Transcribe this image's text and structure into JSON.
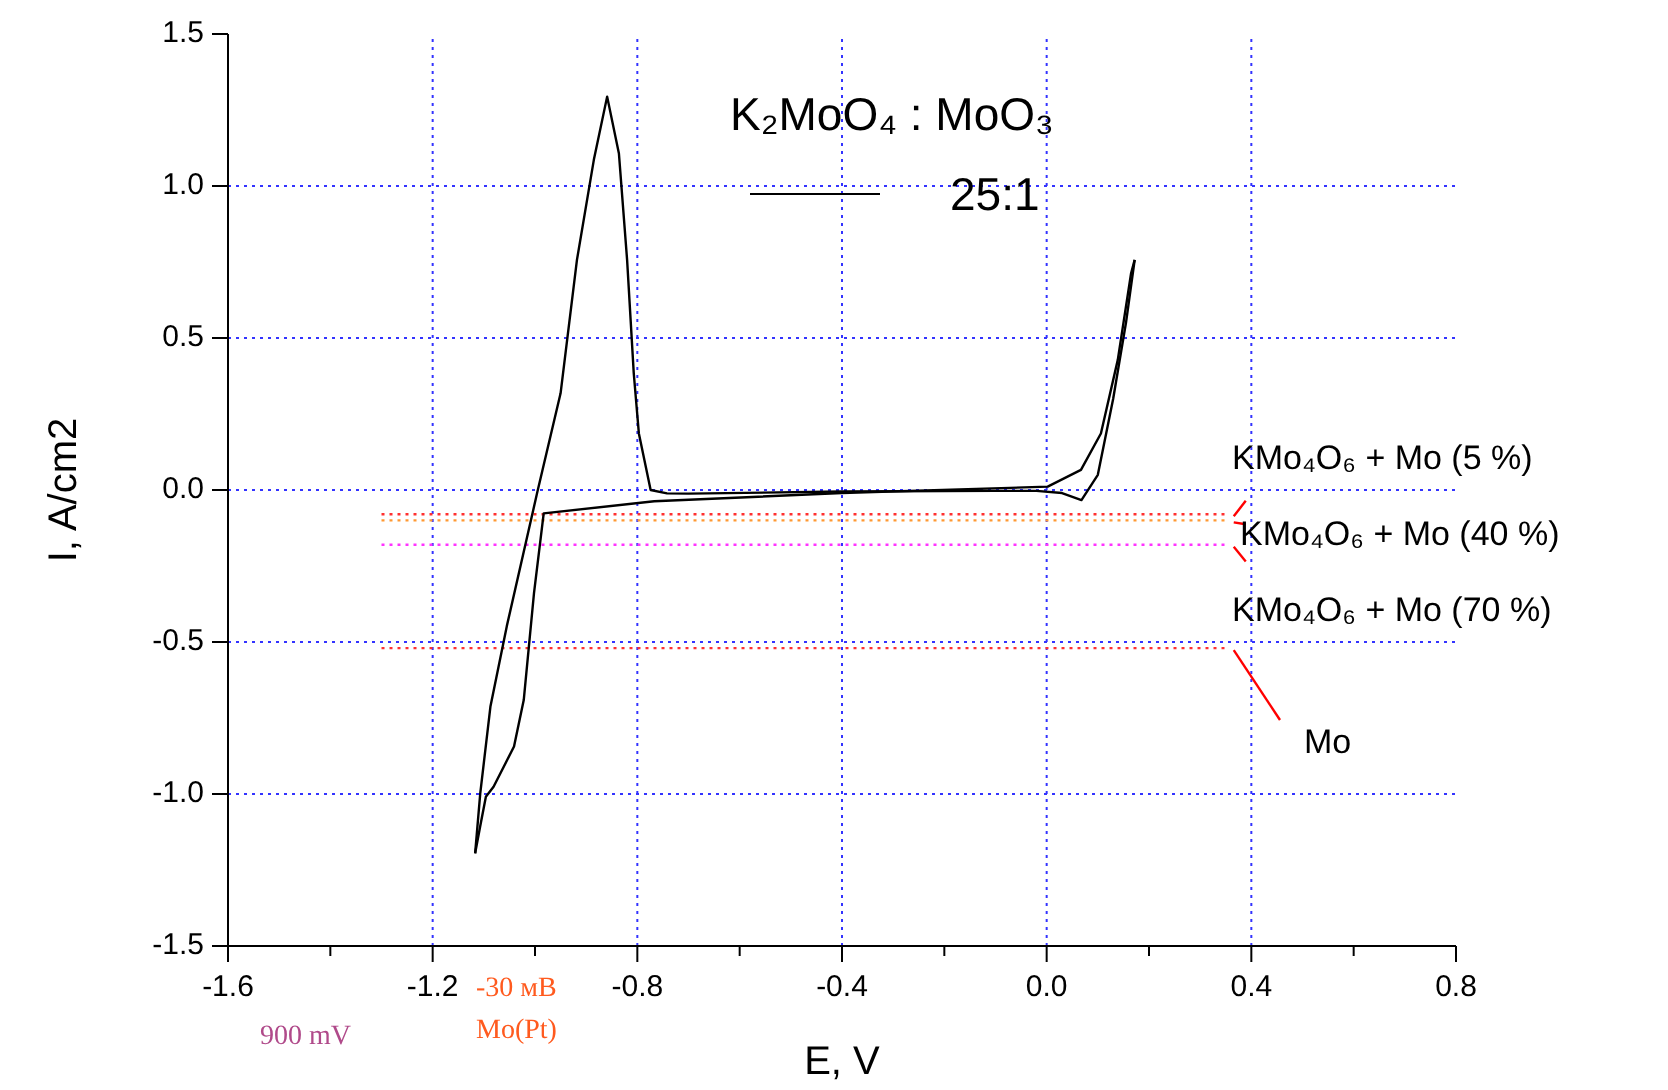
{
  "chart_data": {
    "type": "line",
    "xlabel": "E, V",
    "ylabel": "I, A/cm2",
    "legend_title": "K₂MoO₄ : MoO₃",
    "legend": "top",
    "grid": true,
    "line_style": "solid",
    "marker": "none",
    "xlim": [
      -1.6,
      0.8
    ],
    "ylim": [
      -1.5,
      1.5
    ],
    "xticks": [
      -1.6,
      {
        "value": -1.4,
        "label": null
      },
      -1.2,
      {
        "value": -1.0,
        "label": null
      },
      -0.8,
      {
        "value": -0.6,
        "label": null
      },
      -0.4,
      {
        "value": -0.2,
        "label": null
      },
      {
        "value": 0,
        "label": "0.0"
      },
      {
        "value": 0.2,
        "label": null
      },
      0.4,
      {
        "value": 0.6,
        "label": null
      },
      0.8
    ],
    "yticks": [
      -1.5,
      {
        "value": -1.0,
        "label": "-1.0"
      },
      -0.5,
      {
        "value": 0,
        "label": "0.0"
      },
      0.5,
      {
        "value": 1.0,
        "label": "1.0"
      },
      1.5
    ],
    "series": [
      {
        "name": "25:1",
        "color": "#000000",
        "x": [
          -1.117,
          -1.107,
          -1.087,
          -1.055,
          -0.996,
          -0.95,
          -0.918,
          -0.885,
          -0.859,
          -0.836,
          -0.82,
          -0.807,
          -0.797,
          -0.774,
          -0.742,
          -0.7,
          -0.4,
          -0.1,
          -0.02,
          0.03,
          0.068,
          0.1,
          0.13,
          0.155,
          0.172
        ],
        "values": [
          -1.195,
          -0.998,
          -0.711,
          -0.447,
          -0.011,
          0.318,
          0.757,
          1.086,
          1.294,
          1.107,
          0.757,
          0.384,
          0.186,
          0.0,
          -0.011,
          -0.012,
          -0.005,
          -0.003,
          -0.003,
          -0.01,
          -0.033,
          0.05,
          0.3,
          0.55,
          0.757
        ]
      },
      {
        "color": "#000000",
        "x": [
          0.172,
          0.165,
          0.139,
          0.106,
          0.067,
          0.002,
          -0.4,
          -0.767,
          -0.983,
          -1.002,
          -1.022,
          -1.041,
          -1.081,
          -1.096,
          -1.107,
          -1.117
        ],
        "values": [
          0.757,
          0.713,
          0.428,
          0.186,
          0.066,
          0.011,
          -0.01,
          -0.037,
          -0.077,
          -0.34,
          -0.691,
          -0.844,
          -0.976,
          -1.009,
          -1.105,
          -1.195
        ]
      }
    ],
    "ref_lines": [
      {
        "axis": "y",
        "value": -0.08,
        "label": "KMo₄O₆ + Mo (5 %)",
        "color": "#ff3030",
        "line_style": "dotted"
      },
      {
        "axis": "y",
        "value": -0.1,
        "label": "KMo₄O₆ + Mo (40 %)",
        "color": "#ff9933",
        "line_style": "dotted"
      },
      {
        "axis": "y",
        "value": -0.18,
        "label": "KMo₄O₆ + Mo (70 %)",
        "color": "#ff33ff",
        "line_style": "dotted"
      },
      {
        "axis": "y",
        "value": -0.52,
        "label": "Mo",
        "color": "#ff3030",
        "line_style": "dotted"
      }
    ],
    "annotations": [
      "-30 мВ",
      "Mo(Pt)",
      "900 mV"
    ]
  }
}
